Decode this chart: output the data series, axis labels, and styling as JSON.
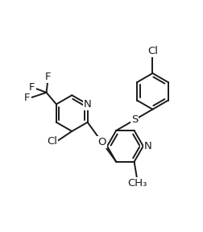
{
  "bg_color": "#ffffff",
  "line_color": "#1a1a1a",
  "bond_lw": 1.4,
  "dbo": 0.018,
  "fs": 9.5,
  "figsize": [
    2.52,
    2.88
  ],
  "dpi": 100,
  "xlim": [
    0.0,
    1.0
  ],
  "ylim": [
    0.0,
    1.14
  ],
  "bl": 0.115
}
